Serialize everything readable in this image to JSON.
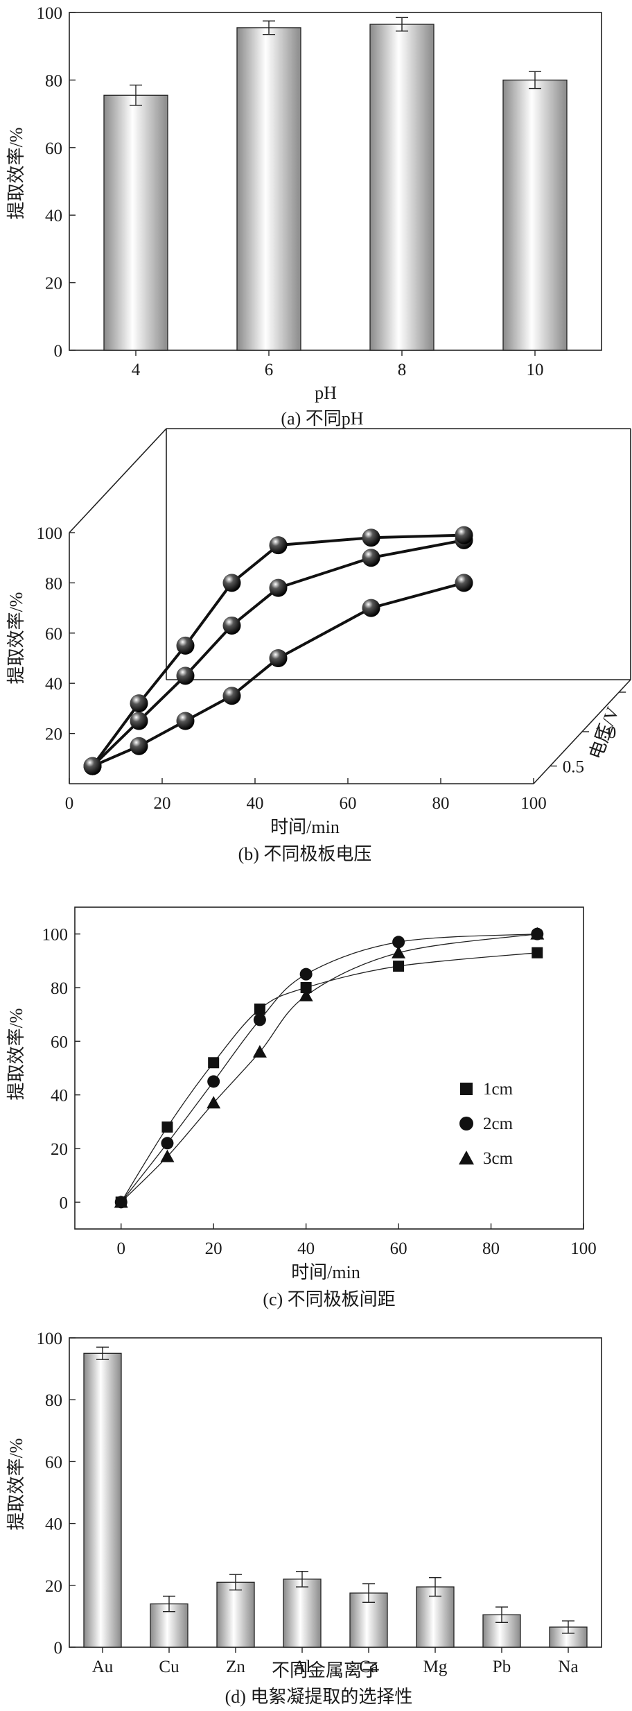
{
  "chart_data": [
    {
      "type": "bar",
      "caption": "(a) 不同pH",
      "xlabel": "pH",
      "ylabel": "提取效率/%",
      "ylim": [
        0,
        100
      ],
      "yticks": [
        "0",
        "20",
        "40",
        "60",
        "80",
        "100"
      ],
      "categories": [
        "4",
        "6",
        "8",
        "10"
      ],
      "values": [
        75.5,
        95.5,
        96.5,
        80
      ],
      "errors": [
        3,
        2,
        2,
        2.5
      ]
    },
    {
      "type": "line",
      "subtype": "3d",
      "caption": "(b) 不同极板电压",
      "xlabel": "时间/min",
      "ylabel": "提取效率/%",
      "zlabel": "电压/V",
      "xticks": [
        "0",
        "20",
        "40",
        "60",
        "80",
        "100"
      ],
      "yticks": [
        "20",
        "40",
        "60",
        "80",
        "100"
      ],
      "zticks": [
        "0.5",
        "1.0",
        "2.0"
      ],
      "xlim": [
        0,
        100
      ],
      "ylim": [
        0,
        100
      ],
      "series": [
        {
          "name": "0.5",
          "x": [
            5,
            15,
            25,
            35,
            45,
            65,
            85
          ],
          "y": [
            7,
            15,
            25,
            35,
            50,
            70,
            80
          ]
        },
        {
          "name": "1.0",
          "x": [
            5,
            15,
            25,
            35,
            45,
            65,
            85
          ],
          "y": [
            7,
            25,
            43,
            63,
            78,
            90,
            97
          ]
        },
        {
          "name": "2.0",
          "x": [
            5,
            15,
            25,
            35,
            45,
            65,
            85
          ],
          "y": [
            7,
            32,
            55,
            80,
            95,
            98,
            99
          ]
        }
      ]
    },
    {
      "type": "scatter",
      "caption": "(c) 不同极板间距",
      "xlabel": "时间/min",
      "ylabel": "提取效率/%",
      "xlim": [
        -10,
        100
      ],
      "ylim": [
        -10,
        110
      ],
      "xticks": [
        "0",
        "20",
        "40",
        "60",
        "80",
        "100"
      ],
      "yticks": [
        "0",
        "20",
        "40",
        "60",
        "80",
        "100"
      ],
      "legend_position": "right",
      "series": [
        {
          "name": "1cm",
          "marker": "square",
          "x": [
            0,
            10,
            20,
            30,
            40,
            60,
            90
          ],
          "y": [
            0,
            28,
            52,
            72,
            80,
            88,
            93
          ]
        },
        {
          "name": "2cm",
          "marker": "circle",
          "x": [
            0,
            10,
            20,
            30,
            40,
            60,
            90
          ],
          "y": [
            0,
            22,
            45,
            68,
            85,
            97,
            100
          ]
        },
        {
          "name": "3cm",
          "marker": "triangle",
          "x": [
            0,
            10,
            20,
            30,
            40,
            60,
            90
          ],
          "y": [
            0,
            17,
            37,
            56,
            77,
            93,
            100
          ]
        }
      ]
    },
    {
      "type": "bar",
      "caption": "(d) 电絮凝提取的选择性",
      "xlabel": "不同金属离子",
      "ylabel": "提取效率/%",
      "ylim": [
        0,
        100
      ],
      "yticks": [
        "0",
        "20",
        "40",
        "60",
        "80",
        "100"
      ],
      "categories": [
        "Au",
        "Cu",
        "Zn",
        "Al",
        "Ca",
        "Mg",
        "Pb",
        "Na"
      ],
      "values": [
        95,
        14,
        21,
        22,
        17.5,
        19.5,
        10.5,
        6.5
      ],
      "errors": [
        2,
        2.5,
        2.5,
        2.5,
        3,
        3,
        2.5,
        2
      ]
    }
  ]
}
